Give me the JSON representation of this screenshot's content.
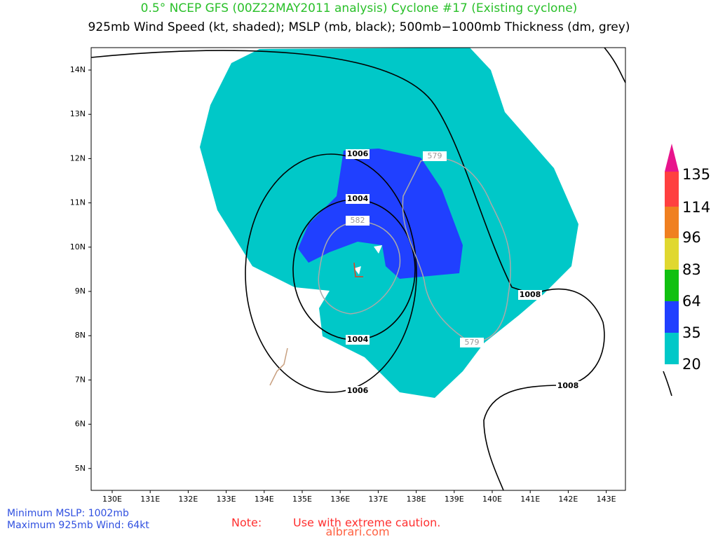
{
  "title": "0.5° NCEP GFS (00Z22MAY2011 analysis) Cyclone #17 (Existing cyclone)",
  "subtitle": "925mb Wind Speed (kt, shaded); MSLP (mb, black); 500mb−1000mb Thickness (dm, grey)",
  "map": {
    "lat_labels": [
      "14N",
      "13N",
      "12N",
      "11N",
      "10N",
      "9N",
      "8N",
      "7N",
      "6N",
      "5N"
    ],
    "lon_labels": [
      "130E",
      "131E",
      "132E",
      "133E",
      "134E",
      "135E",
      "136E",
      "137E",
      "138E",
      "139E",
      "140E",
      "141E",
      "142E",
      "143E"
    ],
    "contour_labels": [
      "1006",
      "1004",
      "582",
      "579",
      "1008",
      "1004",
      "579",
      "1008",
      "1006"
    ]
  },
  "colorbar": {
    "labels": [
      "135",
      "114",
      "96",
      "83",
      "64",
      "35",
      "20"
    ]
  },
  "footer": {
    "min_mslp": "Minimum MSLP: 1002mb",
    "max_wind": "Maximum 925mb Wind: 64kt",
    "note": "Note:",
    "caution": "Use with extreme caution.",
    "watermark": "albrari.com"
  }
}
